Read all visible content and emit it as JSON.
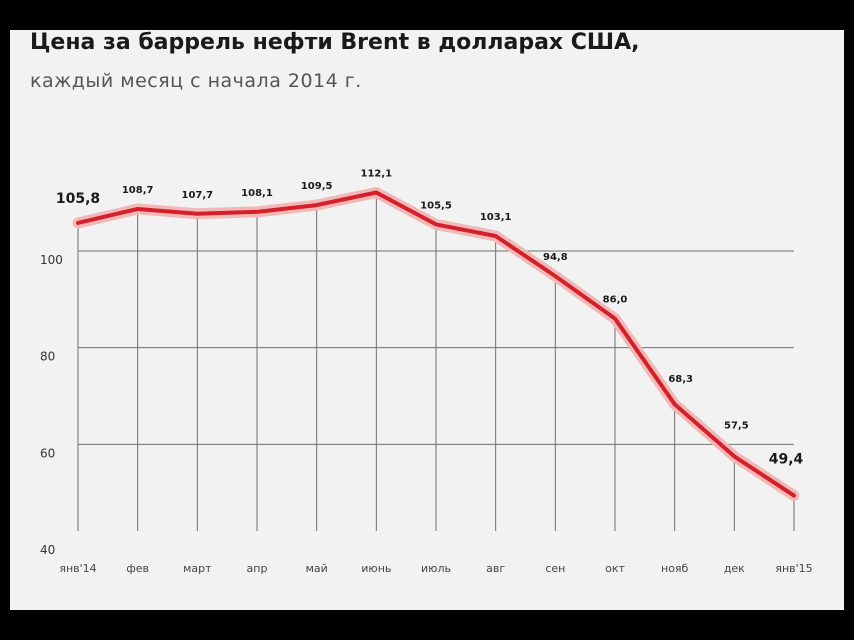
{
  "title": "Цена за баррель нефти Brent в долларах США,",
  "subtitle": "каждый месяц с начала 2014 г.",
  "colors": {
    "line": "#d4202a",
    "glow": "#f2b8b8",
    "grid": "#6f6f6f",
    "text": "#1a1a1a",
    "background": "#f2f2f2"
  },
  "chart_data": {
    "type": "line",
    "title": "Цена за баррель нефти Brent в долларах США,",
    "subtitle": "каждый месяц с начала 2014 г.",
    "categories": [
      "янв'14",
      "фев",
      "март",
      "апр",
      "май",
      "июнь",
      "июль",
      "авг",
      "сен",
      "окт",
      "нояб",
      "дек",
      "янв'15"
    ],
    "series": [
      {
        "values": [
          105.8,
          108.7,
          107.7,
          108.1,
          109.5,
          112.1,
          105.5,
          103.1,
          94.8,
          86.0,
          68.3,
          57.5,
          49.4
        ],
        "labels": [
          "105,8",
          "108,7",
          "107,7",
          "108,1",
          "109,5",
          "112,1",
          "105,5",
          "103,1",
          "94,8",
          "86,0",
          "68,3",
          "57,5",
          "49,4"
        ]
      }
    ],
    "y_ticks": [
      40,
      60,
      80,
      100
    ],
    "ylim": [
      40,
      115
    ],
    "grid": true
  }
}
